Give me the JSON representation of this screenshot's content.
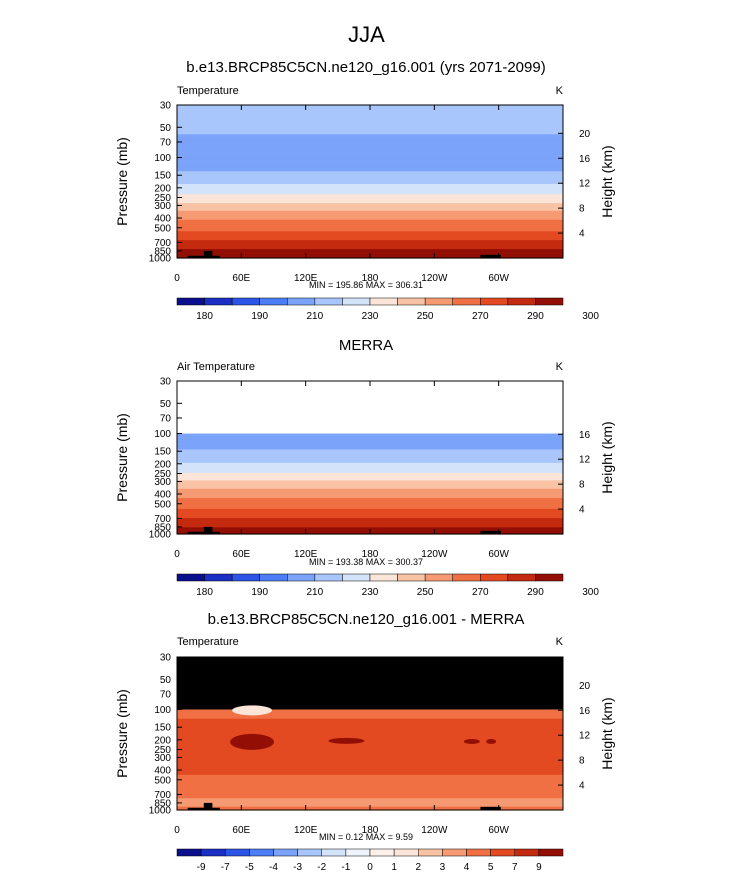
{
  "page": {
    "title": "JJA"
  },
  "chart_data": [
    {
      "type": "heatmap",
      "title": "b.e13.BRCP85C5CN.ne120_g16.001 (yrs 2071-2099)",
      "left_label": "Temperature",
      "units": "K",
      "ylabel": "Pressure (mb)",
      "ylabel_right": "Height (km)",
      "pressure_ticks": [
        30,
        50,
        70,
        100,
        150,
        200,
        250,
        300,
        400,
        500,
        700,
        850,
        1000
      ],
      "height_ticks": [
        4,
        8,
        12,
        16,
        20
      ],
      "x_ticks": [
        "0",
        "60E",
        "120E",
        "180",
        "120W",
        "60W"
      ],
      "x_tick_lon": [
        0,
        60,
        120,
        180,
        240,
        300
      ],
      "stats": "MIN = 195.86  MAX = 306.31",
      "colorbar_labels": [
        "180",
        "190",
        "210",
        "230",
        "250",
        "270",
        "290",
        "300"
      ],
      "top_pressure": 30,
      "profile": [
        {
          "p": 30,
          "t": 213
        },
        {
          "p": 50,
          "t": 213
        },
        {
          "p": 70,
          "t": 207
        },
        {
          "p": 100,
          "t": 201
        },
        {
          "p": 150,
          "t": 213
        },
        {
          "p": 200,
          "t": 223
        },
        {
          "p": 250,
          "t": 233
        },
        {
          "p": 300,
          "t": 243
        },
        {
          "p": 400,
          "t": 258
        },
        {
          "p": 500,
          "t": 267
        },
        {
          "p": 700,
          "t": 282
        },
        {
          "p": 850,
          "t": 292
        },
        {
          "p": 1000,
          "t": 300
        }
      ]
    },
    {
      "type": "heatmap",
      "title": "MERRA",
      "left_label": "Air Temperature",
      "units": "K",
      "ylabel": "Pressure (mb)",
      "ylabel_right": "Height (km)",
      "pressure_ticks": [
        30,
        50,
        70,
        100,
        150,
        200,
        250,
        300,
        400,
        500,
        700,
        850,
        1000
      ],
      "height_ticks": [
        4,
        8,
        12,
        16
      ],
      "x_ticks": [
        "0",
        "60E",
        "120E",
        "180",
        "120W",
        "60W"
      ],
      "x_tick_lon": [
        0,
        60,
        120,
        180,
        240,
        300
      ],
      "stats": "MIN = 193.38  MAX = 300.37",
      "colorbar_labels": [
        "180",
        "190",
        "210",
        "230",
        "250",
        "270",
        "290",
        "300"
      ],
      "top_pressure": 100,
      "profile": [
        {
          "p": 100,
          "t": 201
        },
        {
          "p": 150,
          "t": 211
        },
        {
          "p": 200,
          "t": 221
        },
        {
          "p": 250,
          "t": 231
        },
        {
          "p": 300,
          "t": 241
        },
        {
          "p": 400,
          "t": 256
        },
        {
          "p": 500,
          "t": 265
        },
        {
          "p": 700,
          "t": 280
        },
        {
          "p": 850,
          "t": 290
        },
        {
          "p": 1000,
          "t": 297
        }
      ]
    },
    {
      "type": "heatmap",
      "title": "b.e13.BRCP85C5CN.ne120_g16.001 - MERRA",
      "left_label": "Temperature",
      "units": "K",
      "ylabel": "Pressure (mb)",
      "ylabel_right": "Height (km)",
      "pressure_ticks": [
        30,
        50,
        70,
        100,
        150,
        200,
        250,
        300,
        400,
        500,
        700,
        850,
        1000
      ],
      "height_ticks": [
        4,
        8,
        12,
        16,
        20
      ],
      "x_ticks": [
        "0",
        "60E",
        "120E",
        "180",
        "120W",
        "60W"
      ],
      "x_tick_lon": [
        0,
        60,
        120,
        180,
        240,
        300
      ],
      "stats": "MIN = 0.12  MAX = 9.59",
      "colorbar_labels": [
        "-9",
        "-7",
        "-5",
        "-4",
        "-3",
        "-2",
        "-1",
        "0",
        "1",
        "2",
        "3",
        "4",
        "5",
        "7",
        "9"
      ],
      "top_pressure": 30,
      "missing_above": 100,
      "profile": [
        {
          "p": 100,
          "t": 4.5
        },
        {
          "p": 150,
          "t": 5.5
        },
        {
          "p": 300,
          "t": 5.5
        },
        {
          "p": 400,
          "t": 5.5
        },
        {
          "p": 500,
          "t": 4.5
        },
        {
          "p": 700,
          "t": 4.5
        },
        {
          "p": 850,
          "t": 3.5
        },
        {
          "p": 1000,
          "t": 4.5
        }
      ]
    }
  ],
  "colorbar_colors": {
    "abs": [
      "#0a0f8c",
      "#1b2fc4",
      "#2c55e8",
      "#4c7df6",
      "#7aa3f9",
      "#a8c6fb",
      "#d3e3fa",
      "#fbe5d8",
      "#f8c2a5",
      "#f59a73",
      "#f07044",
      "#e34a22",
      "#c42a0f",
      "#930f05"
    ],
    "diff": [
      "#0a0f8c",
      "#1b2fc4",
      "#2c55e8",
      "#4c7df6",
      "#7aa3f9",
      "#a8c6fb",
      "#d3e3fa",
      "#eef4fc",
      "#fdf0ea",
      "#fbe5d8",
      "#f8c2a5",
      "#f59a73",
      "#f07044",
      "#e34a22",
      "#c42a0f",
      "#930f05"
    ]
  }
}
